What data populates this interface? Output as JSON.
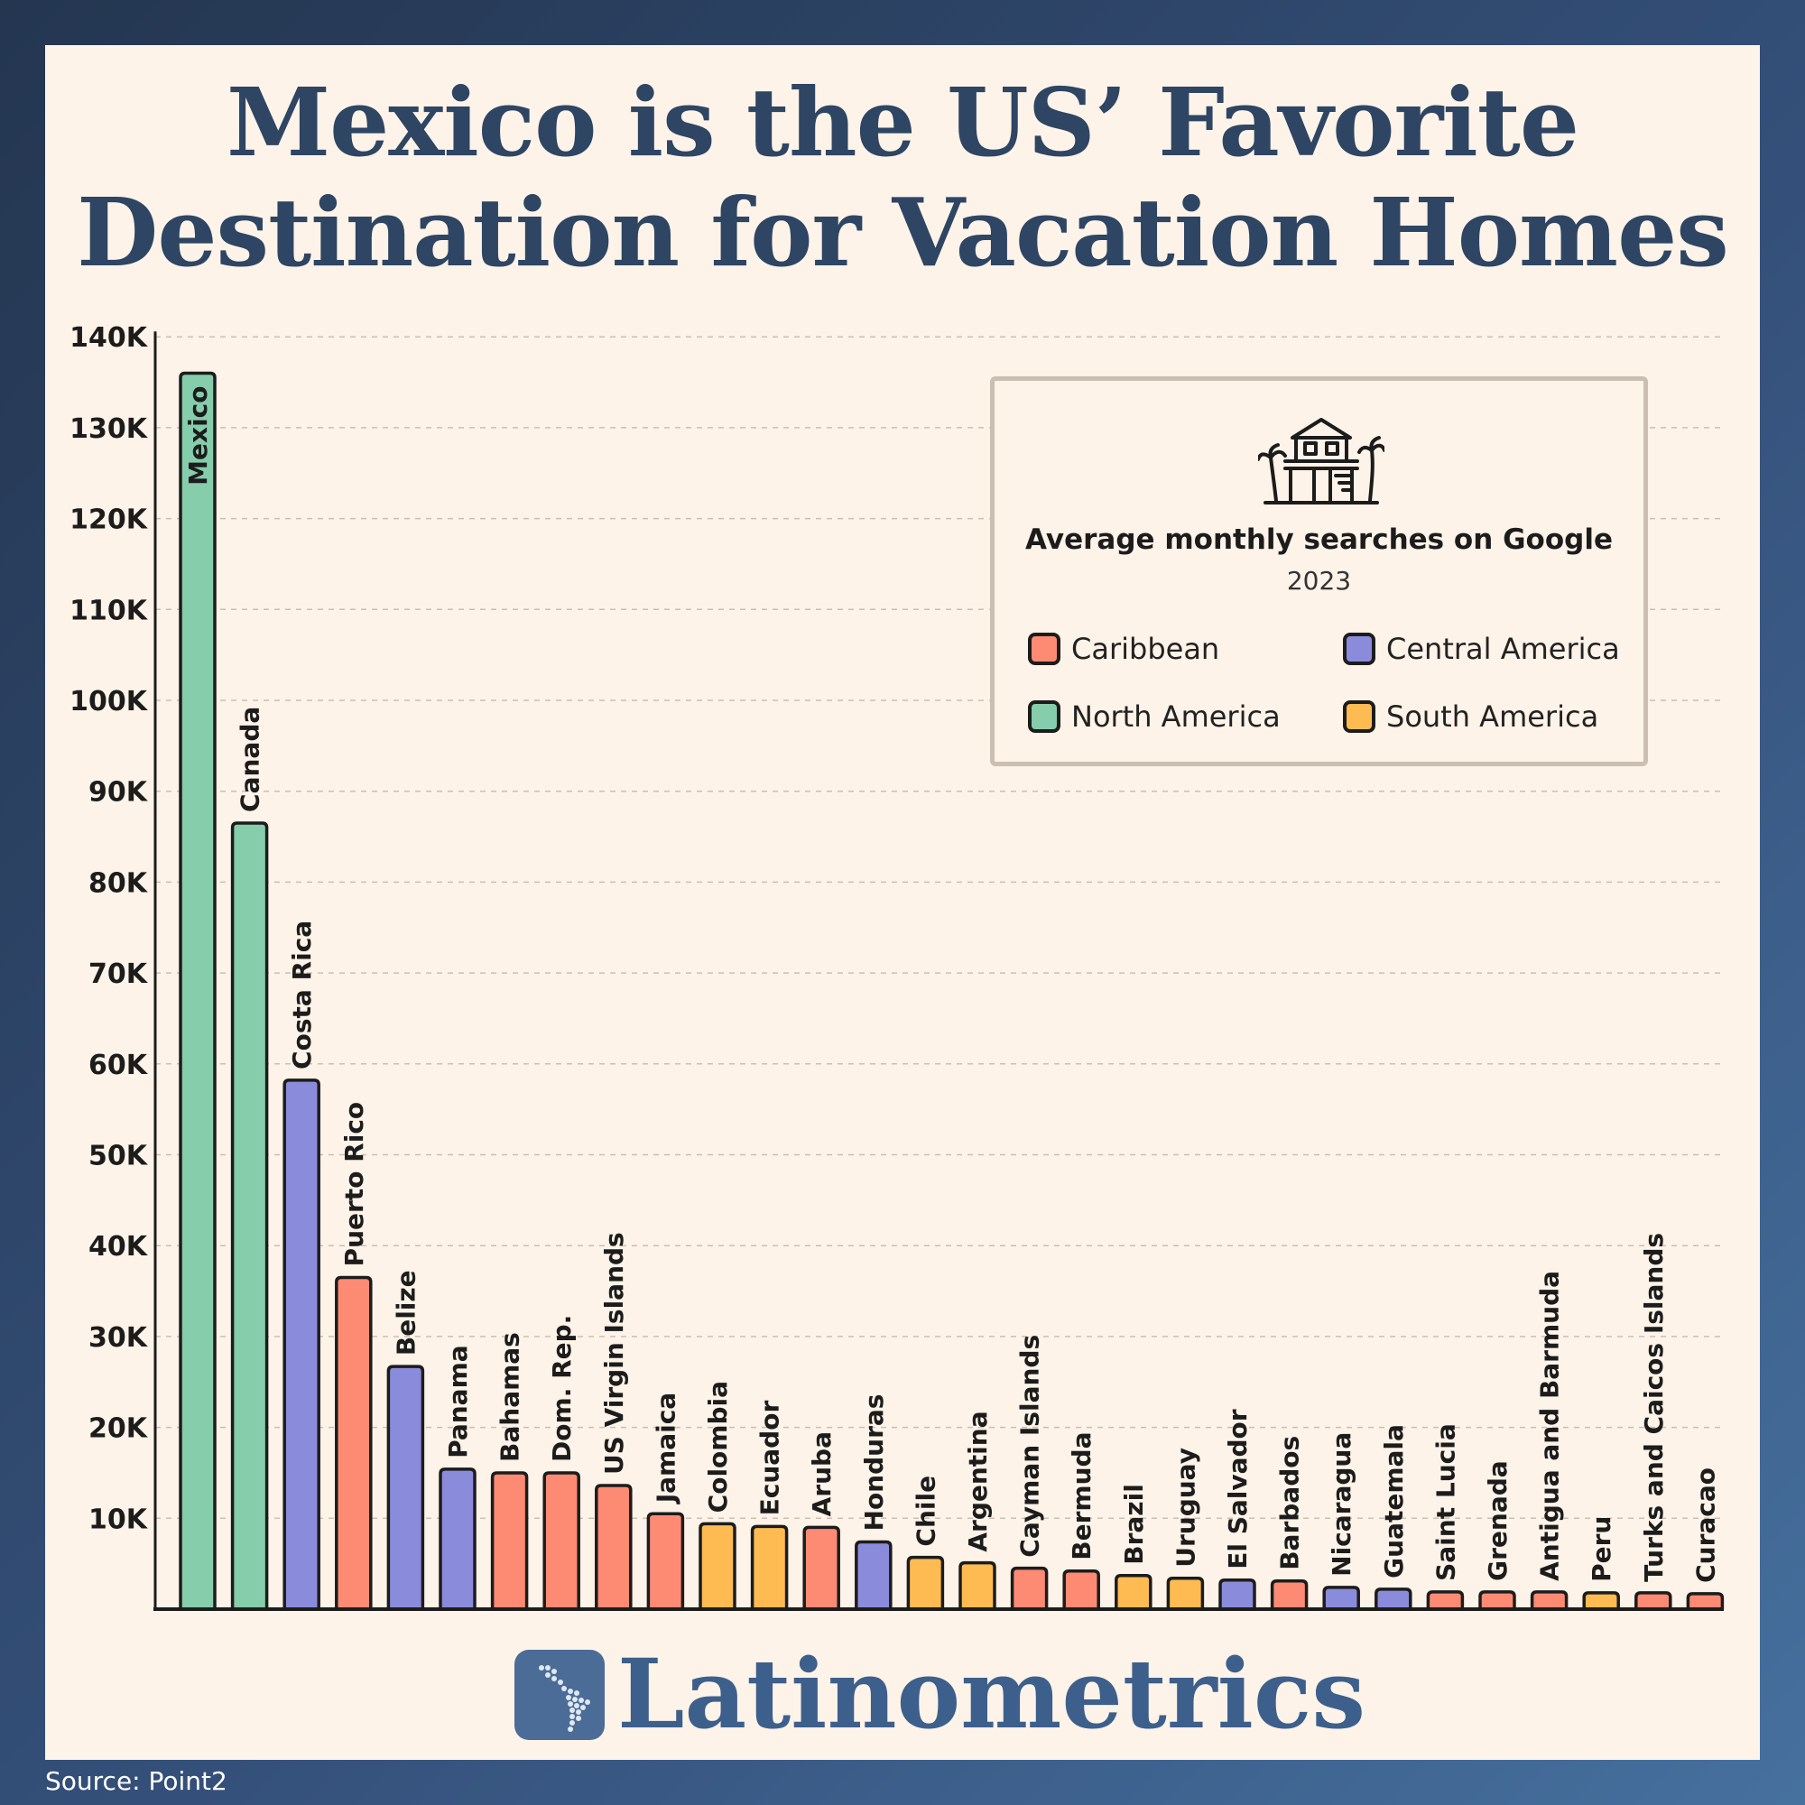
{
  "title": {
    "line1": "Mexico is the US’ Favorite",
    "line2": "Destination for Vacation Homes"
  },
  "legend": {
    "title": "Average monthly searches on Google",
    "year": "2023",
    "icon": "beach-house-icon",
    "items": [
      {
        "label": "Caribbean",
        "color": "#fd8a73"
      },
      {
        "label": "Central America",
        "color": "#8b8bdc"
      },
      {
        "label": "North America",
        "color": "#85cdab"
      },
      {
        "label": "South America",
        "color": "#fdbb51"
      }
    ]
  },
  "brand": {
    "name": "Latinometrics",
    "icon": "latin-america-map-icon"
  },
  "source": "Source: Point2",
  "chart_data": {
    "type": "bar",
    "ylim": [
      0,
      140000
    ],
    "ytick_labels": [
      "10K",
      "20K",
      "30K",
      "40K",
      "50K",
      "60K",
      "70K",
      "80K",
      "90K",
      "100K",
      "110K",
      "120K",
      "130K",
      "140K"
    ],
    "ytick_values": [
      10000,
      20000,
      30000,
      40000,
      50000,
      60000,
      70000,
      80000,
      90000,
      100000,
      110000,
      120000,
      130000,
      140000
    ],
    "grid": true,
    "legend_position": "top-right",
    "categories": [
      "Mexico",
      "Canada",
      "Costa Rica",
      "Puerto Rico",
      "Belize",
      "Panama",
      "Bahamas",
      "Dom. Rep.",
      "US Virgin Islands",
      "Jamaica",
      "Colombia",
      "Ecuador",
      "Aruba",
      "Honduras",
      "Chile",
      "Argentina",
      "Cayman Islands",
      "Bermuda",
      "Brazil",
      "Uruguay",
      "El Salvador",
      "Barbados",
      "Nicaragua",
      "Guatemala",
      "Saint Lucia",
      "Grenada",
      "Antigua and Barmuda",
      "Peru",
      "Turks and Caicos Islands",
      "Curacao"
    ],
    "values": [
      136000,
      86500,
      58200,
      36500,
      26700,
      15400,
      15000,
      15000,
      13600,
      10500,
      9400,
      9100,
      9000,
      7400,
      5700,
      5100,
      4500,
      4200,
      3700,
      3400,
      3200,
      3100,
      2400,
      2200,
      1900,
      1900,
      1900,
      1800,
      1800,
      1700
    ],
    "regions": [
      "North America",
      "North America",
      "Central America",
      "Caribbean",
      "Central America",
      "Central America",
      "Caribbean",
      "Caribbean",
      "Caribbean",
      "Caribbean",
      "South America",
      "South America",
      "Caribbean",
      "Central America",
      "South America",
      "South America",
      "Caribbean",
      "Caribbean",
      "South America",
      "South America",
      "Central America",
      "Caribbean",
      "Central America",
      "Central America",
      "Caribbean",
      "Caribbean",
      "Caribbean",
      "South America",
      "Caribbean",
      "Caribbean"
    ]
  }
}
